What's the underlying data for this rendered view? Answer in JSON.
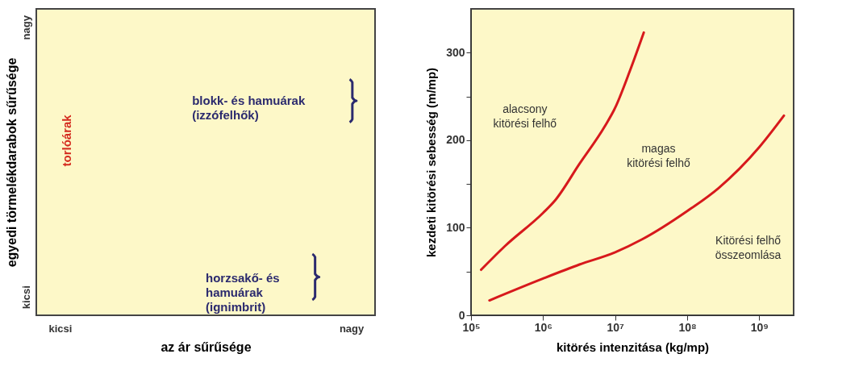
{
  "chart_data": [
    {
      "type": "other",
      "xlabel": "az ár sűrűsége",
      "ylabel": "egyedi törmelékdarabok sűrűsége",
      "categories": [
        "kicsi",
        "nagy"
      ],
      "y_categories": [
        "nagy",
        "kicsi"
      ],
      "annotations": [
        "torlóárak",
        "blokk- és hamuárak\n(izzófelhők)",
        "horzsakő- és\nhamuárak\n(ignimbrit)"
      ]
    },
    {
      "type": "line",
      "xlabel": "kitörés intenzitása (kg/mp)",
      "ylabel": "kezdeti kitörési sebesség (m/mp)",
      "log": "x",
      "xlim": [
        100000,
        3000000000
      ],
      "ylim": [
        0,
        350
      ],
      "xticks": [
        {
          "value": 100000,
          "label": "10⁵"
        },
        {
          "value": 1000000,
          "label": "10⁶"
        },
        {
          "value": 10000000,
          "label": "10⁷"
        },
        {
          "value": 100000000,
          "label": "10⁸"
        },
        {
          "value": 1000000000,
          "label": "10⁹"
        }
      ],
      "yticks": [
        0,
        {
          "value": 50,
          "label": null
        },
        100,
        {
          "value": 150,
          "label": null
        },
        200,
        {
          "value": 250,
          "label": null
        },
        300
      ],
      "grid": false,
      "marker": "none",
      "line_style": "solid",
      "series": [
        {
          "color": "#d7191c",
          "x": [
            138000,
            295000,
            1000000,
            1460000,
            3200000,
            7200000,
            10000000,
            16000000,
            25000000
          ],
          "values": [
            52,
            79,
            117,
            131,
            173,
            216,
            237,
            279,
            323
          ]
        },
        {
          "color": "#d7191c",
          "x": [
            180000,
            1000000,
            3200000,
            10000000,
            24000000,
            100000000,
            270000000,
            1000000000,
            2200000000
          ],
          "values": [
            17,
            42,
            58,
            72,
            87,
            119,
            145,
            192,
            228
          ]
        }
      ],
      "annotations": [
        "alacsony\nkitörési felhő",
        "magas\nkitörési felhő",
        "Kitörési felhő\nösszeomlása"
      ]
    }
  ]
}
